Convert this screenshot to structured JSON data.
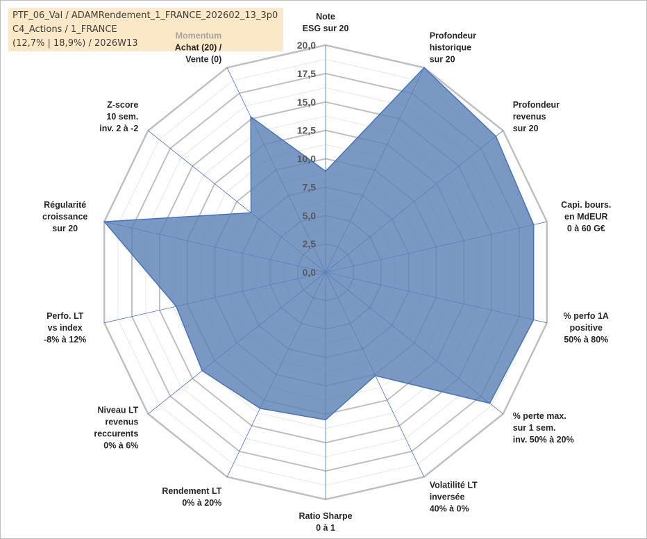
{
  "info": {
    "line1": "PTF_06_Val / ADAMRendement_1_FRANCE_202602_13_3p0",
    "line2": "C4_Actions / 1_FRANCE",
    "line3": "(12,7% | 18,9%) / 2026W13"
  },
  "colors": {
    "fill": "#5b83b6",
    "stroke": "#4472c4",
    "grid": "#bfbfbf",
    "spoke": "#4472c4",
    "accent_label": "#a6a6a6"
  },
  "chart_data": {
    "type": "radar",
    "title": "",
    "rmax": 20,
    "ticks": [
      "0,0",
      "2,5",
      "5,0",
      "7,5",
      "10,0",
      "12,5",
      "15,0",
      "17,5",
      "20,0"
    ],
    "tick_values": [
      0,
      2.5,
      5,
      7.5,
      10,
      12.5,
      15,
      17.5,
      20
    ],
    "axes": [
      {
        "label": [
          "Note",
          "ESG sur 20"
        ],
        "value": 8.9
      },
      {
        "label": [
          "Profondeur",
          "historique",
          "sur 20"
        ],
        "value": 20
      },
      {
        "label": [
          "Profondeur",
          "revenus",
          "sur 20"
        ],
        "value": 19.2
      },
      {
        "label": [
          "Capi. bours.",
          "en MdEUR",
          "0 à 60 G€"
        ],
        "value": 18.8
      },
      {
        "label": [
          "% perfo 1A",
          "positive",
          "50% à 80%"
        ],
        "value": 18.8
      },
      {
        "label": [
          "% perte max.",
          "sur 1 sem.",
          "inv. 50% à 20%"
        ],
        "value": 18.5
      },
      {
        "label": [
          "Volatilité LT",
          "inversée",
          "40% à 0%"
        ],
        "value": 10.1
      },
      {
        "label": [
          "Ratio Sharpe",
          "0 à 1"
        ],
        "value": 13.0
      },
      {
        "label": [
          "Rendement LT",
          "0% à 20%"
        ],
        "value": 13.3
      },
      {
        "label": [
          "Niveau LT",
          "revenus",
          "reccurents",
          "0% à 6%"
        ],
        "value": 13.9
      },
      {
        "label": [
          "Perfo. LT",
          "vs index",
          "-8% à 12%"
        ],
        "value": 13.5
      },
      {
        "label": [
          "Régularité",
          "croissance",
          "sur 20"
        ],
        "value": 20
      },
      {
        "label": [
          "Z-score",
          "10 sem.",
          "inv. 2 à -2"
        ],
        "value": 8.4
      },
      {
        "label": [
          "Momentum",
          "Achat (20) /",
          "Vente (0)"
        ],
        "value": 15.2,
        "accent_first_line": true
      }
    ]
  }
}
